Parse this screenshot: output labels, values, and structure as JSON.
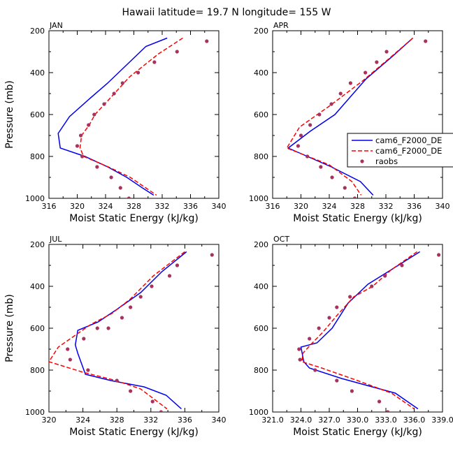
{
  "title": "Hawaii   latitude= 19.7 N longitude= 155 W",
  "colors": {
    "model1": "#0000ee",
    "model2": "#ff0000",
    "obs": "#a8325e"
  },
  "chart_data": [
    {
      "type": "line",
      "panel": "JAN",
      "xlabel": "Moist Static Energy (kJ/kg)",
      "ylabel": "Pressure (mb)",
      "xlim": [
        316,
        340
      ],
      "ylim": [
        1000,
        200
      ],
      "xticks": [
        "316",
        "320",
        "324",
        "328",
        "332",
        "336",
        "340"
      ],
      "yticks": [
        "200",
        "400",
        "600",
        "800",
        "1000"
      ],
      "series": [
        {
          "name": "cam6_F2000_DE",
          "style": "solid",
          "x": [
            332.7,
            329.7,
            324.3,
            321.9,
            318.9,
            317.3,
            317.6,
            321.1,
            324.3,
            327.0,
            329.2,
            330.8
          ],
          "y": [
            235,
            275,
            450,
            520,
            610,
            690,
            760,
            800,
            850,
            900,
            950,
            985
          ]
        },
        {
          "name": "cam6_F2000_DE",
          "style": "dashed",
          "x": [
            334.9,
            331.5,
            327.4,
            324.7,
            322.5,
            321.7,
            320.6,
            320.4,
            320.9,
            324.4,
            327.5,
            331.2
          ],
          "y": [
            235,
            310,
            420,
            520,
            600,
            650,
            700,
            760,
            800,
            850,
            900,
            985
          ]
        },
        {
          "name": "raobs",
          "style": "markers",
          "x": [
            338.3,
            334.1,
            330.9,
            328.6,
            326.4,
            325.2,
            323.8,
            322.4,
            321.6,
            320.5,
            320.0,
            320.7,
            322.8,
            324.8,
            326.1,
            327.3
          ],
          "y": [
            250,
            300,
            350,
            400,
            450,
            500,
            550,
            600,
            650,
            700,
            750,
            800,
            850,
            900,
            950,
            1000
          ]
        }
      ]
    },
    {
      "type": "line",
      "panel": "APR",
      "xlabel": "Moist Static Energy (kJ/kg)",
      "ylabel": "",
      "xlim": [
        316,
        340
      ],
      "ylim": [
        1000,
        200
      ],
      "xticks": [
        "316",
        "320",
        "324",
        "328",
        "332",
        "336",
        "340"
      ],
      "yticks": [
        "200",
        "400",
        "600",
        "800",
        "1000"
      ],
      "legend": [
        "cam6_F2000_DE",
        "cam6_F2000_DE",
        "raobs"
      ],
      "series": [
        {
          "name": "cam6_F2000_DE",
          "style": "solid",
          "x": [
            335.8,
            333.0,
            329.2,
            324.8,
            321.3,
            318.2,
            324.3,
            328.4,
            330.2
          ],
          "y": [
            235,
            320,
            430,
            600,
            680,
            760,
            850,
            920,
            985
          ]
        },
        {
          "name": "cam6_F2000_DE",
          "style": "dashed",
          "x": [
            335.8,
            332.9,
            328.7,
            324.0,
            319.8,
            318.0,
            324.0,
            327.2,
            328.5
          ],
          "y": [
            235,
            320,
            440,
            560,
            660,
            760,
            840,
            920,
            985
          ]
        },
        {
          "name": "raobs",
          "style": "markers",
          "x": [
            337.6,
            332.1,
            330.7,
            329.1,
            327.0,
            325.6,
            324.3,
            322.6,
            321.3,
            320.0,
            319.6,
            320.9,
            322.8,
            324.4,
            326.2,
            327.6
          ],
          "y": [
            250,
            300,
            350,
            400,
            450,
            500,
            550,
            600,
            650,
            700,
            750,
            800,
            850,
            900,
            950,
            1000
          ]
        }
      ]
    },
    {
      "type": "line",
      "panel": "JUL",
      "xlabel": "Moist Static Energy (kJ/kg)",
      "ylabel": "Pressure (mb)",
      "xlim": [
        320,
        340
      ],
      "ylim": [
        1000,
        200
      ],
      "xticks": [
        "320",
        "324",
        "328",
        "332",
        "336",
        "340"
      ],
      "yticks": [
        "200",
        "400",
        "600",
        "800",
        "1000"
      ],
      "series": [
        {
          "name": "cam6_F2000_DE",
          "style": "solid",
          "x": [
            336.2,
            333.3,
            330.8,
            328.0,
            325.8,
            323.4,
            323.1,
            323.4,
            324.3,
            327.3,
            331.2,
            333.8,
            335.6
          ],
          "y": [
            235,
            330,
            430,
            510,
            570,
            610,
            680,
            720,
            820,
            850,
            880,
            920,
            985
          ]
        },
        {
          "name": "cam6_F2000_DE",
          "style": "dashed",
          "x": [
            336.0,
            332.3,
            329.6,
            327.4,
            325.0,
            321.1,
            320.0,
            324.0,
            327.9,
            330.8,
            333.9
          ],
          "y": [
            235,
            350,
            460,
            530,
            580,
            690,
            760,
            810,
            850,
            890,
            985
          ]
        },
        {
          "name": "raobs",
          "style": "markers",
          "x": [
            339.2,
            335.1,
            334.2,
            332.1,
            330.8,
            329.6,
            328.6,
            327.0,
            325.7,
            324.1,
            322.2,
            322.5,
            324.6,
            328.0,
            329.6,
            332.2,
            333.2
          ],
          "y": [
            250,
            300,
            350,
            400,
            450,
            500,
            550,
            600,
            600,
            650,
            700,
            750,
            800,
            850,
            900,
            950,
            1000
          ]
        }
      ]
    },
    {
      "type": "line",
      "panel": "OCT",
      "xlabel": "Moist Static Energy (kJ/kg)",
      "ylabel": "",
      "xlim": [
        321,
        339
      ],
      "ylim": [
        1000,
        200
      ],
      "xticks": [
        "321.0",
        "324.0",
        "327.0",
        "330.0",
        "333.0",
        "336.0",
        "339.0"
      ],
      "yticks": [
        "200",
        "400",
        "600",
        "800",
        "1000"
      ],
      "series": [
        {
          "name": "cam6_F2000_DE",
          "style": "solid",
          "x": [
            336.6,
            333.6,
            331.1,
            329.0,
            327.3,
            325.7,
            324.0,
            324.3,
            324.9,
            328.3,
            334.0,
            336.4
          ],
          "y": [
            235,
            320,
            390,
            480,
            600,
            670,
            690,
            760,
            790,
            840,
            910,
            985
          ]
        },
        {
          "name": "cam6_F2000_DE",
          "style": "dashed",
          "x": [
            336.3,
            333.6,
            331.6,
            329.6,
            327.8,
            326.3,
            325.0,
            324.2,
            324.1,
            326.2,
            330.0,
            333.6,
            336.0
          ],
          "y": [
            235,
            320,
            400,
            450,
            540,
            620,
            680,
            720,
            760,
            790,
            850,
            910,
            985
          ]
        },
        {
          "name": "raobs",
          "style": "markers",
          "x": [
            338.6,
            334.7,
            332.9,
            331.5,
            329.2,
            327.8,
            327.0,
            325.9,
            324.9,
            323.8,
            323.9,
            325.5,
            327.8,
            329.4,
            332.3,
            333.2
          ],
          "y": [
            250,
            300,
            350,
            400,
            450,
            500,
            550,
            600,
            650,
            700,
            750,
            800,
            850,
            900,
            950,
            1000
          ]
        }
      ]
    }
  ]
}
